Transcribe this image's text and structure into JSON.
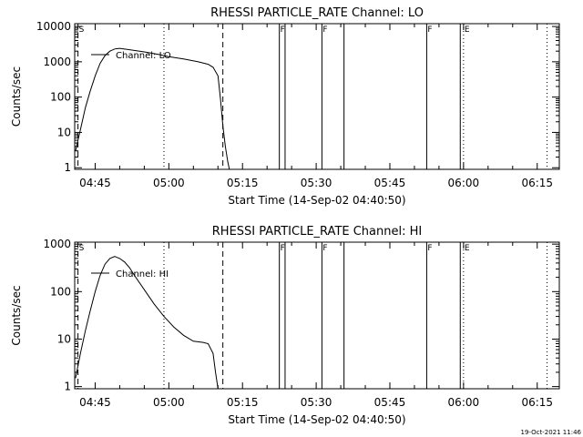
{
  "timestamp": "19-Oct-2021 11:46",
  "chart_data": [
    {
      "type": "line",
      "title": "RHESSI PARTICLE_RATE Channel: LO",
      "xlabel": "Start Time (14-Sep-02 04:40:50)",
      "ylabel": "Counts/sec",
      "yscale": "log",
      "ylim": [
        0.9,
        12000
      ],
      "xlim": [
        "04:40:50",
        "06:19:30"
      ],
      "x_ticks": [
        "04:45",
        "05:00",
        "05:15",
        "05:30",
        "05:45",
        "06:00",
        "06:15"
      ],
      "y_ticks": [
        "1",
        "10",
        "100",
        "1000",
        "10000"
      ],
      "grid": false,
      "legend_position": "top-left",
      "series": [
        {
          "name": "Channel: LO",
          "x": [
            "04:41:00",
            "04:42:00",
            "04:43:00",
            "04:44:00",
            "04:45:00",
            "04:46:00",
            "04:47:00",
            "04:48:00",
            "04:49:00",
            "04:50:00",
            "04:52:00",
            "04:55:00",
            "04:58:00",
            "05:00:00",
            "05:03:00",
            "05:06:00",
            "05:08:00",
            "05:09:00",
            "05:10:00",
            "05:10:30",
            "05:11:00",
            "05:11:30",
            "05:12:00",
            "05:12:20"
          ],
          "y": [
            3,
            12,
            50,
            150,
            400,
            900,
            1500,
            2000,
            2300,
            2400,
            2200,
            1900,
            1600,
            1400,
            1200,
            1000,
            850,
            700,
            400,
            90,
            15,
            4,
            1.5,
            0.9
          ]
        }
      ],
      "annotations": [
        {
          "label": "S",
          "time": "04:41:30",
          "style": "dashed"
        },
        {
          "label": "",
          "time": "04:59:00",
          "style": "dotted"
        },
        {
          "label": "",
          "time": "05:11:00",
          "style": "dashed"
        },
        {
          "label": "F",
          "time": "05:22:30",
          "style": "solid"
        },
        {
          "label": "",
          "time": "05:23:40",
          "style": "solid"
        },
        {
          "label": "F",
          "time": "05:31:10",
          "style": "solid"
        },
        {
          "label": "",
          "time": "05:35:40",
          "style": "solid"
        },
        {
          "label": "F",
          "time": "05:52:30",
          "style": "solid"
        },
        {
          "label": "",
          "time": "05:59:20",
          "style": "solid"
        },
        {
          "label": "E",
          "time": "06:00:00",
          "style": "dotted"
        },
        {
          "label": "",
          "time": "06:17:00",
          "style": "dotted"
        }
      ]
    },
    {
      "type": "line",
      "title": "RHESSI PARTICLE_RATE Channel: HI",
      "xlabel": "Start Time (14-Sep-02 04:40:50)",
      "ylabel": "Counts/sec",
      "yscale": "log",
      "ylim": [
        0.9,
        1100
      ],
      "xlim": [
        "04:40:50",
        "06:19:30"
      ],
      "x_ticks": [
        "04:45",
        "05:00",
        "05:15",
        "05:30",
        "05:45",
        "06:00",
        "06:15"
      ],
      "y_ticks": [
        "1",
        "10",
        "100",
        "1000"
      ],
      "grid": false,
      "legend_position": "top-left",
      "series": [
        {
          "name": "Channel: HI",
          "x": [
            "04:41:00",
            "04:42:00",
            "04:43:00",
            "04:44:00",
            "04:45:00",
            "04:46:00",
            "04:47:00",
            "04:48:00",
            "04:49:00",
            "04:50:00",
            "04:51:00",
            "04:52:00",
            "04:53:00",
            "04:55:00",
            "04:57:00",
            "04:59:00",
            "05:01:00",
            "05:03:00",
            "05:05:00",
            "05:07:00",
            "05:08:00",
            "05:09:00",
            "05:09:30",
            "05:10:00"
          ],
          "y": [
            1.5,
            5,
            15,
            40,
            100,
            220,
            380,
            500,
            550,
            500,
            420,
            320,
            220,
            110,
            55,
            30,
            18,
            12,
            9,
            8.5,
            8,
            5,
            2,
            0.9
          ]
        }
      ],
      "annotations": [
        {
          "label": "S",
          "time": "04:41:30",
          "style": "dashed"
        },
        {
          "label": "",
          "time": "04:59:00",
          "style": "dotted"
        },
        {
          "label": "",
          "time": "05:11:00",
          "style": "dashed"
        },
        {
          "label": "F",
          "time": "05:22:30",
          "style": "solid"
        },
        {
          "label": "",
          "time": "05:23:40",
          "style": "solid"
        },
        {
          "label": "F",
          "time": "05:31:10",
          "style": "solid"
        },
        {
          "label": "",
          "time": "05:35:40",
          "style": "solid"
        },
        {
          "label": "F",
          "time": "05:52:30",
          "style": "solid"
        },
        {
          "label": "",
          "time": "05:59:20",
          "style": "solid"
        },
        {
          "label": "E",
          "time": "06:00:00",
          "style": "dotted"
        },
        {
          "label": "",
          "time": "06:17:00",
          "style": "dotted"
        }
      ]
    }
  ]
}
